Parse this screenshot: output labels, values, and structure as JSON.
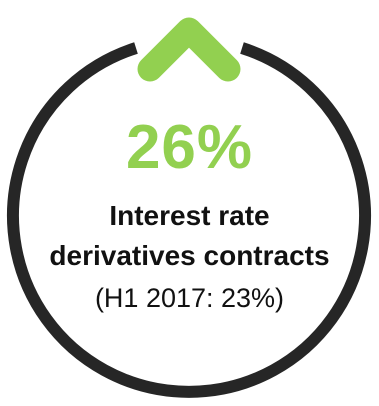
{
  "stat": {
    "value": "26%",
    "label_line1": "Interest rate",
    "label_line2": "derivatives contracts",
    "comparison": "(H1 2017: 23%)"
  },
  "colors": {
    "accent": "#92d050",
    "ring": "#262626",
    "text": "#111111"
  },
  "icons": {
    "indicator": "chevron-up-icon"
  }
}
